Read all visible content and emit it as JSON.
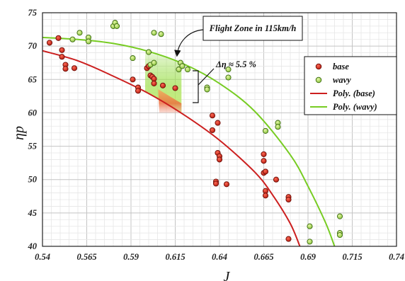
{
  "chart_data": {
    "type": "scatter",
    "xlabel": "J",
    "ylabel": "ηp",
    "xlim": [
      0.54,
      0.74
    ],
    "ylim": [
      40,
      75
    ],
    "x_ticks": [
      "0.54",
      "0.565",
      "0.59",
      "0.615",
      "0.64",
      "0.665",
      "0.69",
      "0.715",
      "0.74"
    ],
    "y_ticks": [
      "40",
      "45",
      "50",
      "55",
      "60",
      "65",
      "70",
      "75"
    ],
    "grid": true,
    "legend_position": "top-right",
    "legend": [
      {
        "label": "base",
        "kind": "marker",
        "color": "#d42a1e"
      },
      {
        "label": "wavy",
        "kind": "marker",
        "color": "#a8d85a"
      },
      {
        "label": "Poly. (base)",
        "kind": "line",
        "color": "#cc1f1f"
      },
      {
        "label": "Poly. (wavy)",
        "kind": "line",
        "color": "#77cc22"
      }
    ],
    "annotations": {
      "flight_zone": "Flight Zone in 115km/h",
      "delta_eta": "Δη ≈ 5.5 %"
    },
    "series": [
      {
        "name": "base",
        "color": "#d42a1e",
        "points": [
          [
            0.544,
            70.5
          ],
          [
            0.549,
            71.2
          ],
          [
            0.551,
            69.4
          ],
          [
            0.551,
            68.4
          ],
          [
            0.553,
            67.2
          ],
          [
            0.553,
            66.6
          ],
          [
            0.558,
            66.7
          ],
          [
            0.591,
            65.0
          ],
          [
            0.594,
            63.8
          ],
          [
            0.594,
            63.3
          ],
          [
            0.599,
            66.7
          ],
          [
            0.6,
            67.0
          ],
          [
            0.601,
            65.6
          ],
          [
            0.602,
            65.4
          ],
          [
            0.603,
            65.1
          ],
          [
            0.603,
            64.4
          ],
          [
            0.608,
            64.1
          ],
          [
            0.615,
            63.7
          ],
          [
            0.636,
            59.6
          ],
          [
            0.636,
            57.4
          ],
          [
            0.639,
            58.5
          ],
          [
            0.639,
            54.0
          ],
          [
            0.64,
            53.5
          ],
          [
            0.64,
            53.0
          ],
          [
            0.638,
            49.7
          ],
          [
            0.638,
            49.4
          ],
          [
            0.644,
            49.3
          ],
          [
            0.665,
            53.8
          ],
          [
            0.665,
            52.8
          ],
          [
            0.665,
            51.0
          ],
          [
            0.666,
            51.2
          ],
          [
            0.666,
            48.3
          ],
          [
            0.666,
            47.6
          ],
          [
            0.672,
            50.0
          ],
          [
            0.679,
            47.4
          ],
          [
            0.679,
            47.0
          ],
          [
            0.679,
            41.1
          ]
        ]
      },
      {
        "name": "wavy",
        "color": "#a8d85a",
        "points": [
          [
            0.557,
            71.0
          ],
          [
            0.561,
            72.0
          ],
          [
            0.566,
            71.3
          ],
          [
            0.566,
            70.7
          ],
          [
            0.58,
            73.0
          ],
          [
            0.581,
            73.5
          ],
          [
            0.582,
            73.0
          ],
          [
            0.591,
            68.2
          ],
          [
            0.6,
            69.1
          ],
          [
            0.601,
            67.2
          ],
          [
            0.603,
            67.5
          ],
          [
            0.603,
            72.0
          ],
          [
            0.607,
            71.8
          ],
          [
            0.617,
            66.5
          ],
          [
            0.618,
            67.5
          ],
          [
            0.619,
            67.0
          ],
          [
            0.622,
            66.5
          ],
          [
            0.633,
            63.8
          ],
          [
            0.633,
            63.5
          ],
          [
            0.645,
            66.5
          ],
          [
            0.645,
            65.3
          ],
          [
            0.666,
            57.3
          ],
          [
            0.673,
            58.5
          ],
          [
            0.673,
            57.9
          ],
          [
            0.691,
            43.0
          ],
          [
            0.691,
            40.7
          ],
          [
            0.708,
            44.5
          ],
          [
            0.708,
            42.0
          ],
          [
            0.708,
            41.7
          ]
        ]
      }
    ],
    "fits": [
      {
        "name": "Poly. (base)",
        "color": "#cc1f1f",
        "points": [
          [
            0.54,
            69.3
          ],
          [
            0.56,
            67.8
          ],
          [
            0.58,
            65.5
          ],
          [
            0.6,
            62.9
          ],
          [
            0.62,
            59.7
          ],
          [
            0.64,
            55.9
          ],
          [
            0.66,
            51.1
          ],
          [
            0.67,
            47.7
          ],
          [
            0.68,
            43.4
          ],
          [
            0.6854,
            40.0
          ]
        ]
      },
      {
        "name": "Poly. (wavy)",
        "color": "#77cc22",
        "points": [
          [
            0.54,
            71.3
          ],
          [
            0.56,
            71.0
          ],
          [
            0.58,
            70.4
          ],
          [
            0.6,
            69.2
          ],
          [
            0.62,
            67.3
          ],
          [
            0.64,
            64.4
          ],
          [
            0.66,
            60.2
          ],
          [
            0.68,
            53.7
          ],
          [
            0.69,
            49.0
          ],
          [
            0.7,
            43.5
          ],
          [
            0.705,
            40.0
          ]
        ]
      }
    ]
  }
}
